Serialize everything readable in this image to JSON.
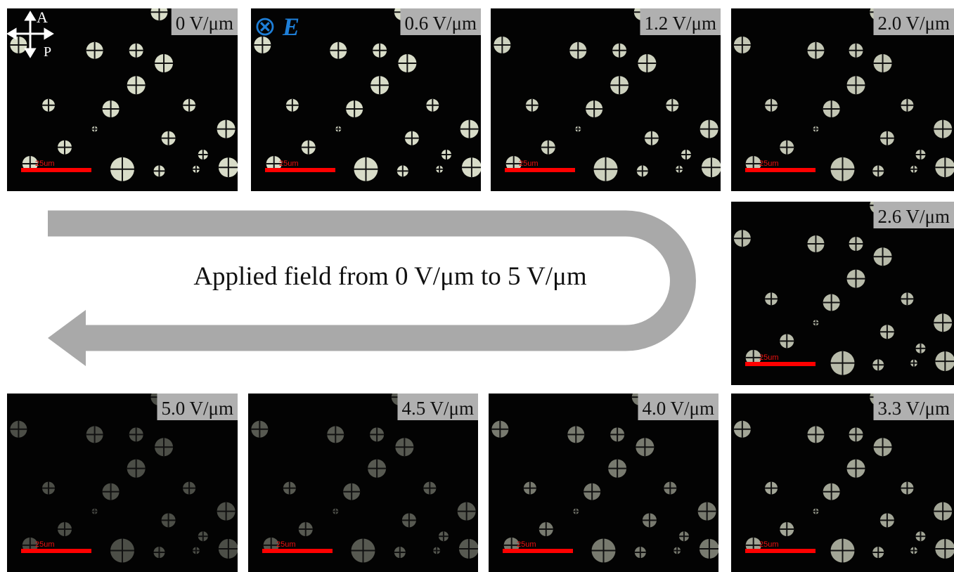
{
  "panels": [
    {
      "label": "0 V/μm"
    },
    {
      "label": "0.6 V/μm"
    },
    {
      "label": "1.2 V/μm"
    },
    {
      "label": "2.0 V/μm"
    },
    {
      "label": "2.6 V/μm"
    },
    {
      "label": "3.3 V/μm"
    },
    {
      "label": "4.0 V/μm"
    },
    {
      "label": "4.5 V/μm"
    },
    {
      "label": "5.0 V/μm"
    }
  ],
  "scale_bar_label": "25um",
  "polarizer": {
    "analyzer": "A",
    "polarizer": "P"
  },
  "field": {
    "symbol": "⊗",
    "letter": "E"
  },
  "caption": "Applied field from 0 V/μm to 5 V/μm"
}
